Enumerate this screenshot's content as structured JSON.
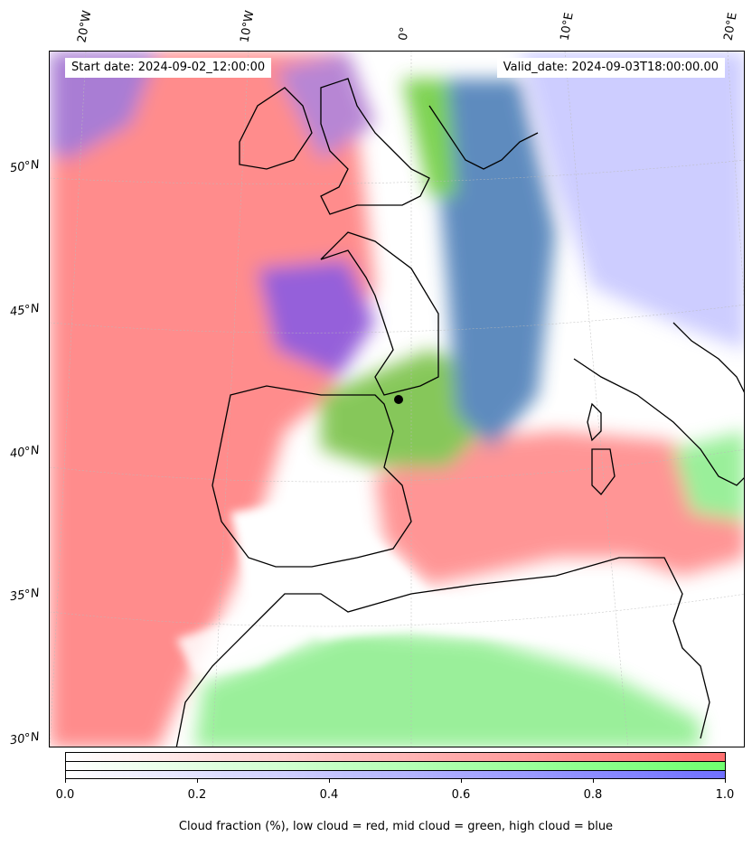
{
  "header": {
    "start_date": "Start date: 2024-09-02_12:00:00",
    "valid_date": "Valid_date: 2024-09-03T18:00:00.00"
  },
  "longitude_labels": [
    "20°W",
    "10°W",
    "0°",
    "10°E",
    "20°E"
  ],
  "latitude_labels": [
    "50°N",
    "45°N",
    "40°N",
    "35°N",
    "30°N"
  ],
  "colorbar": {
    "ticks": [
      "0.0",
      "0.2",
      "0.4",
      "0.6",
      "0.8",
      "1.0"
    ],
    "caption": "Cloud fraction (%), low cloud = red, mid cloud = green, high cloud = blue",
    "colors": {
      "low": "#ff7070",
      "mid": "#70ff70",
      "high": "#7070ff"
    }
  },
  "legend_colors": {
    "low_cloud": "#ff8080",
    "mid_cloud": "#80e080",
    "high_cloud": "#8080ff",
    "mixed": "#8a4fd6"
  }
}
